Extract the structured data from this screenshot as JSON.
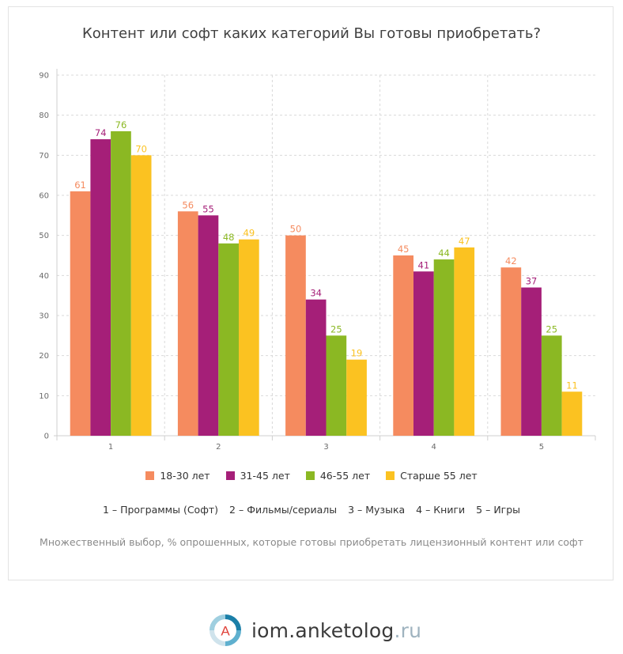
{
  "chart_data": {
    "type": "bar",
    "title": "Контент или софт каких категорий Вы готовы приобретать?",
    "categories": [
      "1",
      "2",
      "3",
      "4",
      "5"
    ],
    "series": [
      {
        "name": "18-30 лет",
        "color": "#f58b5f",
        "values": [
          61,
          56,
          50,
          45,
          42
        ]
      },
      {
        "name": "31-45 лет",
        "color": "#a51f78",
        "values": [
          74,
          55,
          34,
          41,
          37
        ]
      },
      {
        "name": "46-55 лет",
        "color": "#8bb823",
        "values": [
          76,
          48,
          25,
          44,
          25
        ]
      },
      {
        "name": "Старше 55 лет",
        "color": "#fbc221",
        "values": [
          70,
          49,
          19,
          47,
          11
        ]
      }
    ],
    "ylim": [
      0,
      90
    ],
    "yticks": [
      0,
      10,
      20,
      30,
      40,
      50,
      60,
      70,
      80,
      90
    ],
    "grid": true,
    "legend_position": "bottom",
    "data_labels": true
  },
  "category_legend": [
    "1 – Программы (Софт)",
    "2 – Фильмы/сериалы",
    "3 – Музыка",
    "4 – Книги",
    "5 – Игры"
  ],
  "footnote": "Множественный выбор, % опрошенных, которые готовы приобретать лицензионный контент или софт",
  "brand": {
    "name": "iom.anketolog",
    "tld": ".ru",
    "logo_letter": "A"
  }
}
